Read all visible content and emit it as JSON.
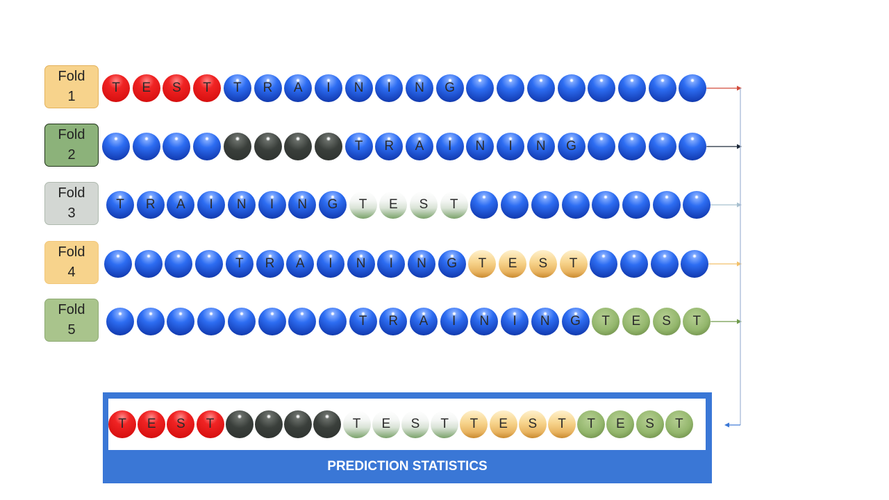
{
  "colors": {
    "blue": "#2d6df2",
    "red": "#e81818",
    "dark": "#3a3f3b",
    "white": "#f0f3ef",
    "orange": "#f2c77a",
    "green": "#93b66c",
    "prediction_box": "#3a77d6"
  },
  "folds": [
    {
      "label_line1": "Fold",
      "label_line2": "1",
      "label_bg": "#f7d38c",
      "label_border": "#e3b25c",
      "arrow_color": "#d24a3a",
      "balls": [
        {
          "c": "red",
          "t": "T"
        },
        {
          "c": "red",
          "t": "E"
        },
        {
          "c": "red",
          "t": "S"
        },
        {
          "c": "red",
          "t": "T"
        },
        {
          "c": "blue",
          "t": "T"
        },
        {
          "c": "blue",
          "t": "R"
        },
        {
          "c": "blue",
          "t": "A"
        },
        {
          "c": "blue",
          "t": "I"
        },
        {
          "c": "blue",
          "t": "N"
        },
        {
          "c": "blue",
          "t": "I"
        },
        {
          "c": "blue",
          "t": "N"
        },
        {
          "c": "blue",
          "t": "G"
        },
        {
          "c": "blue",
          "t": ""
        },
        {
          "c": "blue",
          "t": ""
        },
        {
          "c": "blue",
          "t": ""
        },
        {
          "c": "blue",
          "t": ""
        },
        {
          "c": "blue",
          "t": ""
        },
        {
          "c": "blue",
          "t": ""
        },
        {
          "c": "blue",
          "t": ""
        },
        {
          "c": "blue",
          "t": ""
        }
      ]
    },
    {
      "label_line1": "Fold",
      "label_line2": "2",
      "label_bg": "#8cb27a",
      "label_border": "#1f3319",
      "arrow_color": "#1e2a3a",
      "balls": [
        {
          "c": "blue",
          "t": ""
        },
        {
          "c": "blue",
          "t": ""
        },
        {
          "c": "blue",
          "t": ""
        },
        {
          "c": "blue",
          "t": ""
        },
        {
          "c": "dark",
          "t": ""
        },
        {
          "c": "dark",
          "t": ""
        },
        {
          "c": "dark",
          "t": ""
        },
        {
          "c": "dark",
          "t": ""
        },
        {
          "c": "blue",
          "t": "T"
        },
        {
          "c": "blue",
          "t": "R"
        },
        {
          "c": "blue",
          "t": "A"
        },
        {
          "c": "blue",
          "t": "I"
        },
        {
          "c": "blue",
          "t": "N"
        },
        {
          "c": "blue",
          "t": "I"
        },
        {
          "c": "blue",
          "t": "N"
        },
        {
          "c": "blue",
          "t": "G"
        },
        {
          "c": "blue",
          "t": ""
        },
        {
          "c": "blue",
          "t": ""
        },
        {
          "c": "blue",
          "t": ""
        },
        {
          "c": "blue",
          "t": ""
        }
      ]
    },
    {
      "label_line1": "Fold",
      "label_line2": "3",
      "label_bg": "#d3d7d3",
      "label_border": "#aeb9ae",
      "arrow_color": "#a8c0cf",
      "balls": [
        {
          "c": "blue",
          "t": "T"
        },
        {
          "c": "blue",
          "t": "R"
        },
        {
          "c": "blue",
          "t": "A"
        },
        {
          "c": "blue",
          "t": "I"
        },
        {
          "c": "blue",
          "t": "N"
        },
        {
          "c": "blue",
          "t": "I"
        },
        {
          "c": "blue",
          "t": "N"
        },
        {
          "c": "blue",
          "t": "G"
        },
        {
          "c": "white",
          "t": "T"
        },
        {
          "c": "white",
          "t": "E"
        },
        {
          "c": "white",
          "t": "S"
        },
        {
          "c": "white",
          "t": "T"
        },
        {
          "c": "blue",
          "t": ""
        },
        {
          "c": "blue",
          "t": ""
        },
        {
          "c": "blue",
          "t": ""
        },
        {
          "c": "blue",
          "t": ""
        },
        {
          "c": "blue",
          "t": ""
        },
        {
          "c": "blue",
          "t": ""
        },
        {
          "c": "blue",
          "t": ""
        },
        {
          "c": "blue",
          "t": ""
        }
      ]
    },
    {
      "label_line1": "Fold",
      "label_line2": "4",
      "label_bg": "#f7d38c",
      "label_border": "#f2c77a",
      "arrow_color": "#f2c06a",
      "balls": [
        {
          "c": "blue",
          "t": ""
        },
        {
          "c": "blue",
          "t": ""
        },
        {
          "c": "blue",
          "t": ""
        },
        {
          "c": "blue",
          "t": ""
        },
        {
          "c": "blue",
          "t": "T"
        },
        {
          "c": "blue",
          "t": "R"
        },
        {
          "c": "blue",
          "t": "A"
        },
        {
          "c": "blue",
          "t": "I"
        },
        {
          "c": "blue",
          "t": "N"
        },
        {
          "c": "blue",
          "t": "I"
        },
        {
          "c": "blue",
          "t": "N"
        },
        {
          "c": "blue",
          "t": "G"
        },
        {
          "c": "orange",
          "t": "T"
        },
        {
          "c": "orange",
          "t": "E"
        },
        {
          "c": "orange",
          "t": "S"
        },
        {
          "c": "orange",
          "t": "T"
        },
        {
          "c": "blue",
          "t": ""
        },
        {
          "c": "blue",
          "t": ""
        },
        {
          "c": "blue",
          "t": ""
        },
        {
          "c": "blue",
          "t": ""
        }
      ]
    },
    {
      "label_line1": "Fold",
      "label_line2": "5",
      "label_bg": "#a9c48c",
      "label_border": "#8eaa74",
      "arrow_color": "#6f9a4a",
      "balls": [
        {
          "c": "blue",
          "t": ""
        },
        {
          "c": "blue",
          "t": ""
        },
        {
          "c": "blue",
          "t": ""
        },
        {
          "c": "blue",
          "t": ""
        },
        {
          "c": "blue",
          "t": ""
        },
        {
          "c": "blue",
          "t": ""
        },
        {
          "c": "blue",
          "t": ""
        },
        {
          "c": "blue",
          "t": ""
        },
        {
          "c": "blue",
          "t": "T"
        },
        {
          "c": "blue",
          "t": "R"
        },
        {
          "c": "blue",
          "t": "A"
        },
        {
          "c": "blue",
          "t": "I"
        },
        {
          "c": "blue",
          "t": "N"
        },
        {
          "c": "blue",
          "t": "I"
        },
        {
          "c": "blue",
          "t": "N"
        },
        {
          "c": "blue",
          "t": "G"
        },
        {
          "c": "green",
          "t": "T"
        },
        {
          "c": "green",
          "t": "E"
        },
        {
          "c": "green",
          "t": "S"
        },
        {
          "c": "green",
          "t": "T"
        }
      ]
    }
  ],
  "prediction": {
    "title": "PREDICTION STATISTICS",
    "arrow_color": "#3a77d6",
    "balls": [
      {
        "c": "red",
        "t": "T"
      },
      {
        "c": "red",
        "t": "E"
      },
      {
        "c": "red",
        "t": "S"
      },
      {
        "c": "red",
        "t": "T"
      },
      {
        "c": "dark",
        "t": ""
      },
      {
        "c": "dark",
        "t": ""
      },
      {
        "c": "dark",
        "t": ""
      },
      {
        "c": "dark",
        "t": ""
      },
      {
        "c": "white",
        "t": "T"
      },
      {
        "c": "white",
        "t": "E"
      },
      {
        "c": "white",
        "t": "S"
      },
      {
        "c": "white",
        "t": "T"
      },
      {
        "c": "orange",
        "t": "T"
      },
      {
        "c": "orange",
        "t": "E"
      },
      {
        "c": "orange",
        "t": "S"
      },
      {
        "c": "orange",
        "t": "T"
      },
      {
        "c": "green",
        "t": "T"
      },
      {
        "c": "green",
        "t": "E"
      },
      {
        "c": "green",
        "t": "S"
      },
      {
        "c": "green",
        "t": "T"
      }
    ]
  }
}
